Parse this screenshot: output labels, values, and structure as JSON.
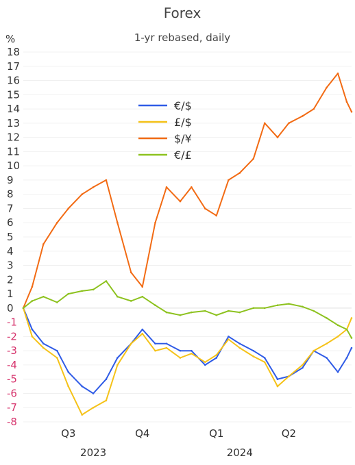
{
  "chart_data": {
    "type": "line",
    "title": "Forex",
    "subtitle": "1-yr rebased, daily",
    "ylabel": "%",
    "ylim": [
      -8,
      18
    ],
    "yticks": [
      18,
      17,
      16,
      15,
      14,
      13,
      12,
      11,
      10,
      9,
      8,
      7,
      6,
      5,
      4,
      3,
      2,
      1,
      0,
      -1,
      -2,
      -3,
      -4,
      -5,
      -6,
      -7,
      -8
    ],
    "negative_tick_color": "#d6336c",
    "grid": "horizontal",
    "legend_position": "upper-center",
    "x_quarter_labels": [
      "Q3",
      "Q4",
      "Q1",
      "Q2"
    ],
    "x_year_labels": [
      "2023",
      "2024"
    ],
    "x": [
      "2023-06-20",
      "2023-07-01",
      "2023-07-15",
      "2023-08-01",
      "2023-08-15",
      "2023-09-01",
      "2023-09-15",
      "2023-10-01",
      "2023-10-15",
      "2023-11-01",
      "2023-11-15",
      "2023-12-01",
      "2023-12-15",
      "2024-01-01",
      "2024-01-15",
      "2024-02-01",
      "2024-02-15",
      "2024-03-01",
      "2024-03-15",
      "2024-04-01",
      "2024-04-15",
      "2024-05-01",
      "2024-05-15",
      "2024-06-01",
      "2024-06-15",
      "2024-07-01",
      "2024-07-15",
      "2024-07-26",
      "2024-08-01"
    ],
    "series": [
      {
        "name": "€/$",
        "color": "#2f5be6",
        "values": [
          0.0,
          -1.5,
          -2.5,
          -3.0,
          -4.5,
          -5.5,
          -6.0,
          -5.0,
          -3.5,
          -2.5,
          -1.5,
          -2.5,
          -2.5,
          -3.0,
          -3.0,
          -4.0,
          -3.5,
          -2.0,
          -2.5,
          -3.0,
          -3.5,
          -5.0,
          -4.8,
          -4.2,
          -3.0,
          -3.5,
          -4.5,
          -3.5,
          -2.8
        ]
      },
      {
        "name": "£/$",
        "color": "#f5c218",
        "values": [
          0.0,
          -2.0,
          -2.8,
          -3.5,
          -5.5,
          -7.5,
          -7.0,
          -6.5,
          -4.0,
          -2.5,
          -1.8,
          -3.0,
          -2.8,
          -3.5,
          -3.2,
          -3.8,
          -3.3,
          -2.2,
          -2.8,
          -3.4,
          -3.8,
          -5.5,
          -4.8,
          -4.0,
          -3.0,
          -2.5,
          -2.0,
          -1.5,
          -0.7
        ]
      },
      {
        "name": "$/¥",
        "color": "#f26b14",
        "values": [
          0.0,
          1.5,
          4.5,
          6.0,
          7.0,
          8.0,
          8.5,
          9.0,
          6.0,
          2.5,
          1.5,
          6.0,
          8.5,
          7.5,
          8.5,
          7.0,
          6.5,
          9.0,
          9.5,
          10.5,
          13.0,
          12.0,
          13.0,
          13.5,
          14.0,
          15.5,
          16.5,
          14.5,
          13.8
        ]
      },
      {
        "name": "€/£",
        "color": "#8dc21f",
        "values": [
          0.0,
          0.5,
          0.8,
          0.4,
          1.0,
          1.2,
          1.3,
          1.9,
          0.8,
          0.5,
          0.8,
          0.2,
          -0.3,
          -0.5,
          -0.3,
          -0.2,
          -0.5,
          -0.2,
          -0.3,
          0.0,
          0.0,
          0.2,
          0.3,
          0.1,
          -0.2,
          -0.7,
          -1.2,
          -1.5,
          -2.1
        ]
      }
    ]
  }
}
